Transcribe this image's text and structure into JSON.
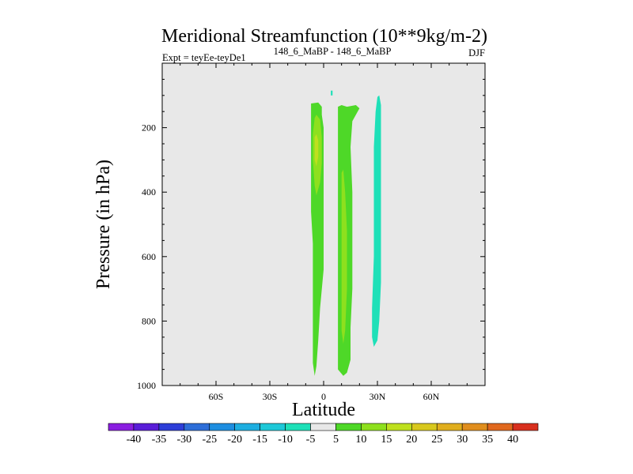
{
  "chart_data": {
    "type": "contour",
    "title": "Meridional Streamfunction (10**9kg/m-2)",
    "subtitle_left": "Expt = teyEe-teyDe1",
    "subtitle_center": "148_6_MaBP - 148_6_MaBP",
    "subtitle_right": "DJF",
    "xlabel": "Latitude",
    "ylabel": "Pressure (in hPa)",
    "xlim": [
      -90,
      90
    ],
    "ylim": [
      1000,
      0
    ],
    "x_ticks": [
      {
        "value": -60,
        "label": "60S"
      },
      {
        "value": -30,
        "label": "30S"
      },
      {
        "value": 0,
        "label": "0"
      },
      {
        "value": 30,
        "label": "30N"
      },
      {
        "value": 60,
        "label": "60N"
      }
    ],
    "y_ticks": [
      {
        "value": 200,
        "label": "200"
      },
      {
        "value": 400,
        "label": "400"
      },
      {
        "value": 600,
        "label": "600"
      },
      {
        "value": 800,
        "label": "800"
      },
      {
        "value": 1000,
        "label": "1000"
      }
    ],
    "background_color": "#e8e8e8",
    "colorbar": {
      "labels": [
        "-40",
        "-35",
        "-30",
        "-25",
        "-20",
        "-15",
        "-10",
        "-5",
        "5",
        "10",
        "15",
        "20",
        "25",
        "30",
        "35",
        "40"
      ],
      "colors": [
        "#8a1ee0",
        "#5a1ed8",
        "#2e3ed8",
        "#2e6ed8",
        "#1e8ee0",
        "#1eaee0",
        "#1ec8d8",
        "#1ee0b8",
        "#e8e8e8",
        "#4ed828",
        "#8ee01e",
        "#bee01e",
        "#d8c81e",
        "#e0ae1e",
        "#e08e1e",
        "#e0681e",
        "#d8301e"
      ]
    },
    "regions": [
      {
        "name": "positive-cell-south",
        "level": 5,
        "color": "#4ed828",
        "lat": [
          -7,
          -3,
          -1,
          -1,
          0,
          0,
          0,
          0,
          0,
          0,
          -2,
          -3,
          -4,
          -5,
          -6,
          -6,
          -6,
          -6,
          -7,
          -7,
          -7,
          -7
        ],
        "p": [
          125,
          122,
          135,
          160,
          200,
          260,
          330,
          420,
          520,
          640,
          760,
          860,
          940,
          970,
          930,
          820,
          700,
          560,
          460,
          400,
          300,
          180
        ]
      },
      {
        "name": "positive-cell-south-core",
        "level": 10,
        "color": "#8ee01e",
        "lat": [
          -5,
          -4,
          -2,
          -1,
          -1,
          -2,
          -4,
          -5,
          -6,
          -6
        ],
        "p": [
          170,
          160,
          175,
          230,
          310,
          370,
          410,
          380,
          300,
          220
        ]
      },
      {
        "name": "positive-cell-south-max",
        "level": 15,
        "color": "#bee01e",
        "lat": [
          -5,
          -4,
          -3,
          -3,
          -4,
          -5,
          -5
        ],
        "p": [
          230,
          220,
          240,
          290,
          320,
          300,
          260
        ]
      },
      {
        "name": "positive-cell-equator",
        "level": 5,
        "color": "#4ed828",
        "lat": [
          8,
          10,
          13,
          18,
          20,
          16,
          15,
          16,
          16,
          16,
          15,
          15,
          13,
          11,
          8,
          8,
          8,
          8,
          8,
          8
        ],
        "p": [
          135,
          130,
          135,
          130,
          140,
          180,
          260,
          400,
          550,
          700,
          820,
          920,
          960,
          970,
          950,
          850,
          700,
          500,
          300,
          180
        ]
      },
      {
        "name": "positive-cell-equator-core",
        "level": 10,
        "color": "#8ee01e",
        "lat": [
          10,
          11,
          12,
          13,
          13,
          12,
          11,
          10,
          10,
          10
        ],
        "p": [
          340,
          330,
          400,
          520,
          700,
          830,
          870,
          830,
          650,
          450
        ]
      },
      {
        "name": "negative-cell-north",
        "level": -5,
        "color": "#1ee0b8",
        "lat": [
          30,
          31,
          32,
          32,
          32,
          32,
          32,
          31,
          30,
          28,
          27,
          27,
          28,
          28,
          28,
          29
        ],
        "p": [
          105,
          100,
          130,
          220,
          360,
          520,
          680,
          800,
          860,
          880,
          850,
          760,
          600,
          420,
          260,
          150
        ]
      },
      {
        "name": "negative-speck",
        "level": -5,
        "color": "#1ee0b8",
        "lat": [
          4,
          5,
          5,
          4
        ],
        "p": [
          85,
          85,
          100,
          100
        ]
      }
    ]
  }
}
